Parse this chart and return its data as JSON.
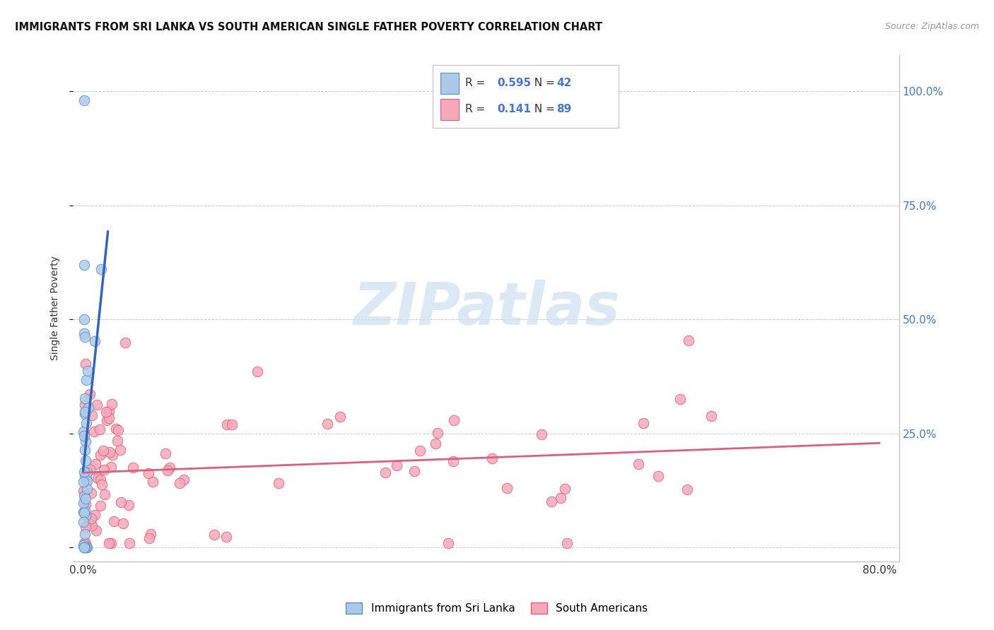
{
  "title": "IMMIGRANTS FROM SRI LANKA VS SOUTH AMERICAN SINGLE FATHER POVERTY CORRELATION CHART",
  "source": "Source: ZipAtlas.com",
  "ylabel": "Single Father Poverty",
  "sri_lanka_R": 0.595,
  "sri_lanka_N": 42,
  "south_american_R": 0.141,
  "south_american_N": 89,
  "sri_lanka_color": "#adc9e8",
  "sri_lanka_edge": "#5b8ec4",
  "south_american_color": "#f5a8b8",
  "south_american_edge": "#d96080",
  "trend_blue": "#3366bb",
  "trend_pink": "#d96080",
  "watermark_color": "#cce0f0",
  "grid_color": "#cccccc",
  "right_axis_color": "#4477cc",
  "background_color": "#ffffff"
}
